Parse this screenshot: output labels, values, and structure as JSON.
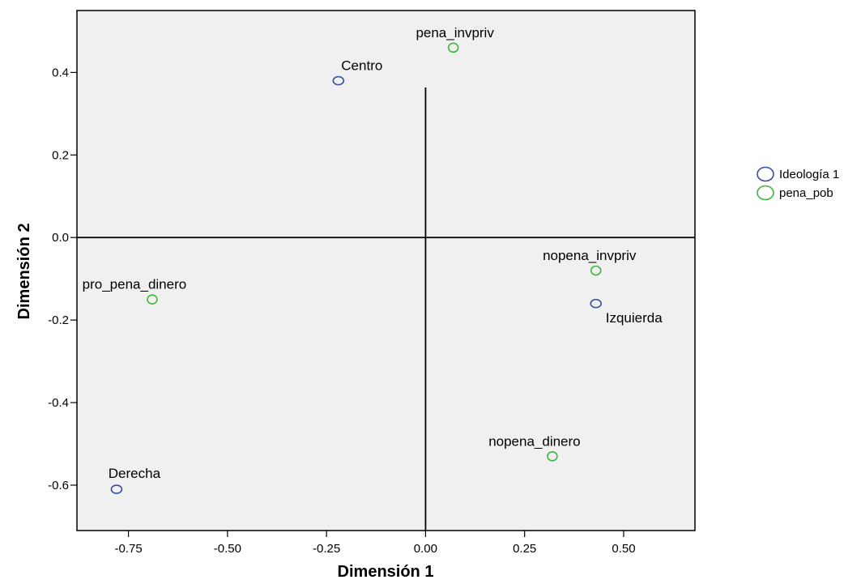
{
  "chart_data": {
    "type": "scatter",
    "xlabel": "Dimensión 1",
    "ylabel": "Dimensión 2",
    "xlim": [
      -0.88,
      0.68
    ],
    "ylim": [
      -0.71,
      0.55
    ],
    "xticks": [
      -0.75,
      -0.5,
      -0.25,
      0.0,
      0.25,
      0.5
    ],
    "xtick_labels": [
      "-0.75",
      "-0.50",
      "-0.25",
      "0.00",
      "0.25",
      "0.50"
    ],
    "yticks": [
      0.4,
      0.2,
      0.0,
      -0.2,
      -0.4,
      -0.6
    ],
    "ytick_labels": [
      "0.4",
      "0.2",
      "0.0",
      "-0.2",
      "-0.4",
      "-0.6"
    ],
    "grid": false,
    "reference_lines": {
      "x": 0,
      "y": 0
    },
    "legend_position": "right",
    "background_color": "#f0f0f0",
    "series": [
      {
        "name": "Ideología 1",
        "color": "#3b4ea0",
        "marker": "open-circle",
        "points": [
          {
            "label": "Centro",
            "x": -0.22,
            "y": 0.38
          },
          {
            "label": "Izquierda",
            "x": 0.43,
            "y": -0.16
          },
          {
            "label": "Derecha",
            "x": -0.78,
            "y": -0.61
          }
        ]
      },
      {
        "name": "pena_pob",
        "color": "#3fb63f",
        "marker": "open-circle",
        "points": [
          {
            "label": "pena_invpriv",
            "x": 0.07,
            "y": 0.46
          },
          {
            "label": "nopena_invpriv",
            "x": 0.43,
            "y": -0.08
          },
          {
            "label": "pro_pena_dinero",
            "x": -0.69,
            "y": -0.15
          },
          {
            "label": "nopena_dinero",
            "x": 0.32,
            "y": -0.53
          }
        ]
      }
    ]
  }
}
